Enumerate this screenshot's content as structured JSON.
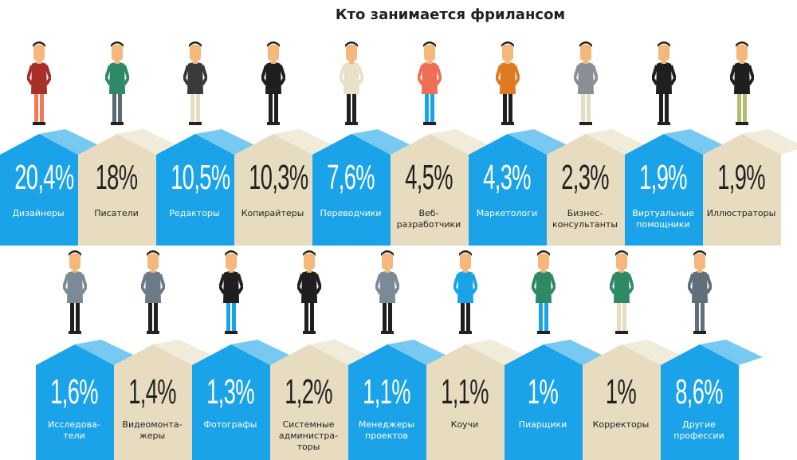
{
  "title": "Кто занимается фрилансом",
  "colors": {
    "blue": "#1aa3e8",
    "blue_roof": "#5fc0ee",
    "blue_side": "#4db8ec",
    "beige": "#e7dcc0",
    "beige_roof": "#efe7d2",
    "text_dark": "#231f20"
  },
  "top_row": [
    {
      "pct": "20,4%",
      "label": [
        "Дизайнеры"
      ],
      "color": "blue",
      "shirt": "#a8302a",
      "pants": "#f07a55"
    },
    {
      "pct": "18%",
      "label": [
        "Писатели"
      ],
      "color": "beige",
      "shirt": "#2e8a66",
      "pants": "#5a6b78"
    },
    {
      "pct": "10,5%",
      "label": [
        "Редакторы"
      ],
      "color": "blue",
      "shirt": "#3a3a3a",
      "pants": "#e6dcc3"
    },
    {
      "pct": "10,3%",
      "label": [
        "Копирайтеры"
      ],
      "color": "beige",
      "shirt": "#1f1f1f",
      "pants": "#1f1f1f"
    },
    {
      "pct": "7,6%",
      "label": [
        "Переводчики"
      ],
      "color": "blue",
      "shirt": "#e8e0c8",
      "pants": "#1f1f1f"
    },
    {
      "pct": "4,5%",
      "label": [
        "Веб-",
        "разработчики"
      ],
      "color": "beige",
      "shirt": "#f06e55",
      "pants": "#1aa3e8"
    },
    {
      "pct": "4,3%",
      "label": [
        "Маркетологи"
      ],
      "color": "blue",
      "shirt": "#e07a20",
      "pants": "#1f1f1f"
    },
    {
      "pct": "2,3%",
      "label": [
        "Бизнес-",
        "консультанты"
      ],
      "color": "beige",
      "shirt": "#8a8f96",
      "pants": "#e6dcc3"
    },
    {
      "pct": "1,9%",
      "label": [
        "Виртуальные",
        "помощники"
      ],
      "color": "blue",
      "shirt": "#1f1f1f",
      "pants": "#1f1f1f"
    },
    {
      "pct": "1,9%",
      "label": [
        "Иллюстраторы"
      ],
      "color": "beige",
      "shirt": "#1f1f1f",
      "pants": "#b3bd72"
    }
  ],
  "bottom_row": [
    {
      "pct": "1,6%",
      "label": [
        "Исследова-",
        "тели"
      ],
      "color": "blue",
      "shirt": "#7b8a96",
      "pants": "#1f1f1f"
    },
    {
      "pct": "1,4%",
      "label": [
        "Видеомонта-",
        "жеры"
      ],
      "color": "beige",
      "shirt": "#6c7b88",
      "pants": "#1f1f1f"
    },
    {
      "pct": "1,3%",
      "label": [
        "Фотографы"
      ],
      "color": "blue",
      "shirt": "#1f1f1f",
      "pants": "#1aa3e8"
    },
    {
      "pct": "1,2%",
      "label": [
        "Системные",
        "администра-",
        "торы"
      ],
      "color": "beige",
      "shirt": "#1f1f1f",
      "pants": "#1f1f1f"
    },
    {
      "pct": "1,1%",
      "label": [
        "Менеджеры",
        "проектов"
      ],
      "color": "blue",
      "shirt": "#7b8a96",
      "pants": "#1f1f1f"
    },
    {
      "pct": "1,1%",
      "label": [
        "Коучи"
      ],
      "color": "beige",
      "shirt": "#1aa3e8",
      "pants": "#1f1f1f"
    },
    {
      "pct": "1%",
      "label": [
        "Пиарщики"
      ],
      "color": "blue",
      "shirt": "#2e8a66",
      "pants": "#1aa3e8"
    },
    {
      "pct": "1%",
      "label": [
        "Корректоры"
      ],
      "color": "beige",
      "shirt": "#2e8a66",
      "pants": "#e6dcc3"
    },
    {
      "pct": "8,6%",
      "label": [
        "Другие",
        "профессии"
      ],
      "color": "blue",
      "shirt": "#5f6f7c",
      "pants": "#5f6f7c"
    }
  ],
  "chart_data": {
    "type": "bar",
    "title": "Кто занимается фрилансом",
    "xlabel": "",
    "ylabel": "",
    "unit": "%",
    "categories": [
      "Дизайнеры",
      "Писатели",
      "Редакторы",
      "Копирайтеры",
      "Переводчики",
      "Веб-разработчики",
      "Маркетологи",
      "Бизнес-консультанты",
      "Виртуальные помощники",
      "Иллюстраторы",
      "Исследователи",
      "Видеомонтажеры",
      "Фотографы",
      "Системные администраторы",
      "Менеджеры проектов",
      "Коучи",
      "Пиарщики",
      "Корректоры",
      "Другие профессии"
    ],
    "values": [
      20.4,
      18,
      10.5,
      10.3,
      7.6,
      4.5,
      4.3,
      2.3,
      1.9,
      1.9,
      1.6,
      1.4,
      1.3,
      1.2,
      1.1,
      1.1,
      1,
      1,
      8.6
    ],
    "grid": false,
    "legend": null
  }
}
